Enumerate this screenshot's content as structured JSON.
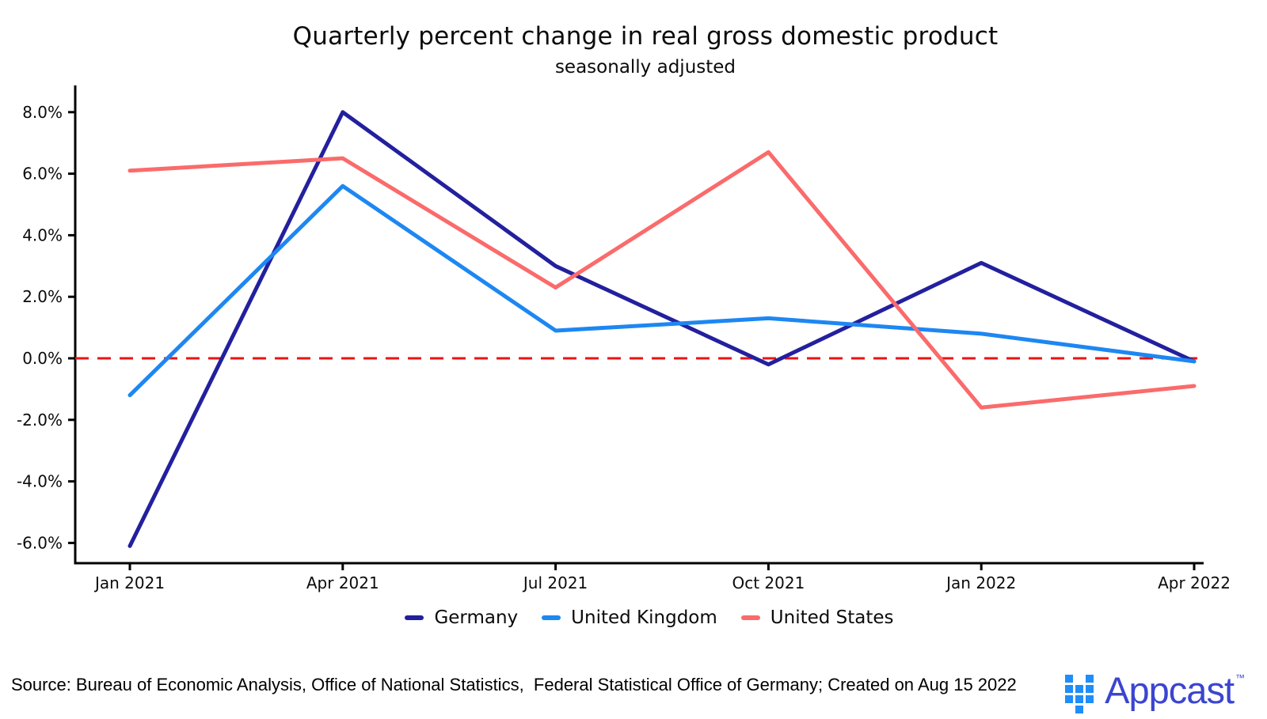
{
  "title": "Quarterly percent change in real gross domestic product",
  "subtitle": "seasonally adjusted",
  "chart_data": {
    "type": "line",
    "title": "Quarterly percent change in real gross domestic product",
    "subtitle": "seasonally adjusted",
    "categories": [
      "Jan 2021",
      "Apr 2021",
      "Jul 2021",
      "Oct 2021",
      "Jan 2022",
      "Apr 2022"
    ],
    "series": [
      {
        "name": "Germany",
        "color": "#23209e",
        "values": [
          -6.1,
          8.0,
          3.0,
          -0.2,
          3.1,
          -0.1
        ]
      },
      {
        "name": "United Kingdom",
        "color": "#1d87f2",
        "values": [
          -1.2,
          5.6,
          0.9,
          1.3,
          0.8,
          -0.1
        ]
      },
      {
        "name": "United States",
        "color": "#fa6b6b",
        "values": [
          6.1,
          6.5,
          2.3,
          6.7,
          -1.6,
          -0.9
        ]
      }
    ],
    "y_ticks": [
      8,
      6,
      4,
      2,
      0,
      -2,
      -4,
      -6
    ],
    "y_tick_labels": [
      "8.0%",
      "6.0%",
      "4.0%",
      "2.0%",
      "0.0%",
      "-2.0%",
      "-4.0%",
      "-6.0%"
    ],
    "ylim": [
      -7.3,
      8.85
    ],
    "xlabel": "",
    "ylabel": "",
    "grid": false,
    "legend_position": "bottom",
    "zero_line": {
      "value": 0,
      "color": "#ec1212",
      "style": "dashed"
    },
    "axis_color": "#000000"
  },
  "legend": {
    "items": [
      {
        "label": "Germany"
      },
      {
        "label": "United Kingdom"
      },
      {
        "label": "United States"
      }
    ]
  },
  "footer": {
    "source_text": "Source: Bureau of Economic Analysis, Office of National Statistics,  Federal Statistical Office of Germany; Created on Aug 15 2022",
    "logo_text": "Appcast",
    "logo_tm": "™"
  }
}
